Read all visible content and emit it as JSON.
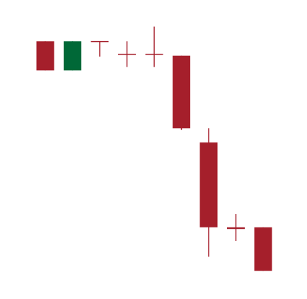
{
  "chart_data": {
    "type": "candlestick",
    "title": "",
    "xlabel": "",
    "ylabel": "",
    "axes_visible": false,
    "grid": false,
    "ylim": [
      0,
      100
    ],
    "colors": {
      "up": "#006837",
      "down": "#a51f2b"
    },
    "candles": [
      {
        "open": 88.4,
        "high": 88.4,
        "low": 78.1,
        "close": 78.1
      },
      {
        "open": 78.1,
        "high": 88.4,
        "low": 78.1,
        "close": 88.4
      },
      {
        "open": 88.4,
        "high": 88.4,
        "low": 83.0,
        "close": 88.2
      },
      {
        "open": 84.0,
        "high": 88.4,
        "low": 79.3,
        "close": 83.6
      },
      {
        "open": 84.0,
        "high": 93.6,
        "low": 79.3,
        "close": 83.6
      },
      {
        "open": 83.3,
        "high": 83.3,
        "low": 57.1,
        "close": 57.6
      },
      {
        "open": 52.6,
        "high": 57.6,
        "low": 12.2,
        "close": 22.6
      },
      {
        "open": 22.6,
        "high": 27.3,
        "low": 17.8,
        "close": 22.0
      },
      {
        "open": 22.6,
        "high": 22.6,
        "low": 7.2,
        "close": 7.2
      }
    ]
  }
}
